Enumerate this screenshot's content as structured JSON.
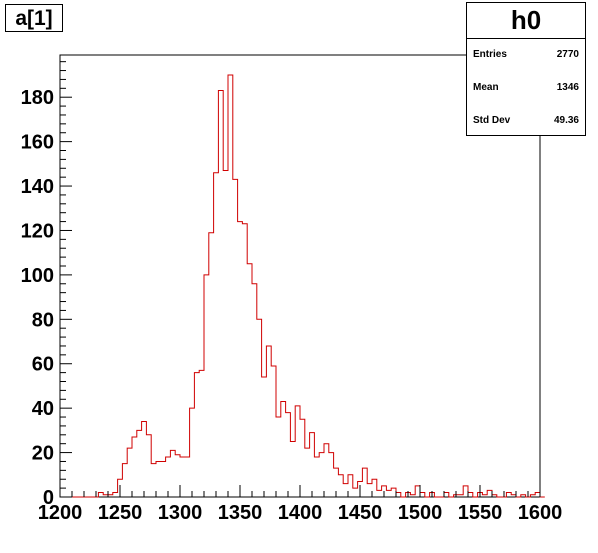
{
  "canvas_title": "a[1]",
  "stats": {
    "name": "h0",
    "rows": [
      {
        "label": "Entries",
        "value": "2770"
      },
      {
        "label": "Mean",
        "value": "1346"
      },
      {
        "label": "Std Dev",
        "value": "49.36"
      }
    ]
  },
  "colors": {
    "histogram_line": "#d00000",
    "frame": "#000000",
    "background": "#ffffff"
  },
  "chart_data": {
    "type": "histogram",
    "title": "",
    "xlabel": "",
    "ylabel": "",
    "xlim": [
      1200,
      1600
    ],
    "ylim": [
      0,
      199
    ],
    "bin_width": 4,
    "bins_start": 1200,
    "x_ticks": [
      "1200",
      "1250",
      "1300",
      "1350",
      "1400",
      "1450",
      "1500",
      "1550",
      "1600"
    ],
    "y_ticks": [
      "0",
      "20",
      "40",
      "60",
      "80",
      "100",
      "120",
      "140",
      "160",
      "180"
    ],
    "grid": false,
    "legend": "none",
    "values": [
      0,
      0,
      0,
      0,
      0,
      0,
      0,
      0,
      2,
      1,
      1,
      2,
      8,
      15,
      22,
      27,
      30,
      34,
      28,
      15,
      16,
      16,
      18,
      21,
      19,
      18,
      18,
      40,
      56,
      57,
      100,
      119,
      146,
      183,
      147,
      190,
      143,
      124,
      123,
      105,
      96,
      80,
      54,
      68,
      59,
      36,
      43,
      38,
      25,
      41,
      35,
      22,
      29,
      18,
      20,
      24,
      20,
      13,
      10,
      6,
      10,
      4,
      7,
      13,
      6,
      8,
      3,
      5,
      3,
      4,
      2,
      0,
      2,
      1,
      5,
      2,
      0,
      2,
      0,
      0,
      2,
      0,
      1,
      1,
      5,
      2,
      0,
      2,
      1,
      3,
      1,
      0,
      0,
      2,
      1,
      0,
      1,
      0,
      1,
      2,
      0
    ]
  }
}
